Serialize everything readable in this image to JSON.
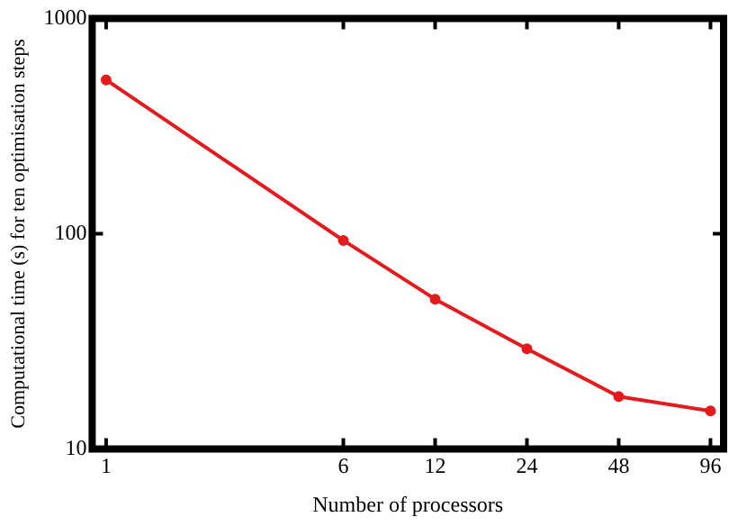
{
  "chart_data": {
    "type": "line",
    "xlabel": "Number of processors",
    "ylabel": "Computational time (s) for ten optimisation steps",
    "x": [
      1,
      6,
      12,
      24,
      48,
      96
    ],
    "series": [
      {
        "color": "#e41a1c",
        "values": [
          518,
          93,
          49.6,
          29.2,
          17.5,
          15.0
        ]
      }
    ],
    "log": "xy",
    "xlim": [
      0.9,
      106
    ],
    "xticks": [
      1,
      6,
      12,
      24,
      48,
      96
    ],
    "ylim": [
      10,
      1000
    ],
    "yticks": [
      10,
      100,
      1000
    ],
    "grid": false,
    "legend": false,
    "marker": "circle",
    "line_style": "solid"
  }
}
